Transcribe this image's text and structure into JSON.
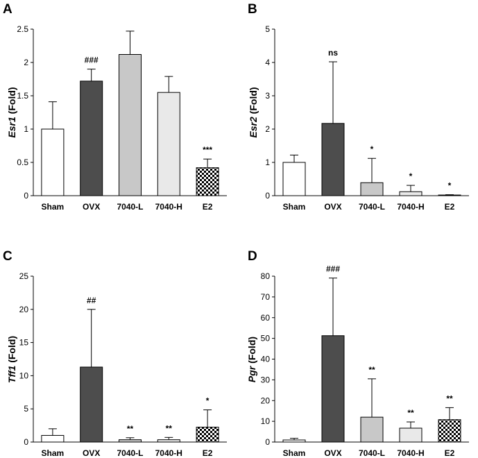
{
  "chart_data": [
    {
      "type": "bar",
      "panel": "A",
      "ylabel_gene": "Esr1",
      "ylabel_suffix": " (Fold)",
      "categories": [
        "Sham",
        "OVX",
        "7040-L",
        "7040-H",
        "E2"
      ],
      "values": [
        1.0,
        1.72,
        2.12,
        1.55,
        0.42
      ],
      "errors": [
        0.41,
        0.18,
        0.35,
        0.24,
        0.13
      ],
      "annotations": [
        "",
        "###",
        "",
        "",
        "***"
      ],
      "ylim": [
        0,
        2.5
      ],
      "yticks": [
        0,
        0.5,
        1,
        1.5,
        2,
        2.5
      ],
      "ytick_labels": [
        "0",
        "0.5",
        "1",
        "1.5",
        "2",
        "2.5"
      ]
    },
    {
      "type": "bar",
      "panel": "B",
      "ylabel_gene": "Esr2",
      "ylabel_suffix": " (Fold)",
      "categories": [
        "Sham",
        "OVX",
        "7040-L",
        "7040-H",
        "E2"
      ],
      "values": [
        1.0,
        2.17,
        0.39,
        0.12,
        0.02
      ],
      "errors": [
        0.22,
        1.85,
        0.73,
        0.19,
        0.01
      ],
      "annotations": [
        "",
        "ns",
        "*",
        "*",
        "*"
      ],
      "ylim": [
        0,
        5
      ],
      "yticks": [
        0,
        1,
        2,
        3,
        4,
        5
      ],
      "ytick_labels": [
        "0",
        "1",
        "2",
        "3",
        "4",
        "5"
      ]
    },
    {
      "type": "bar",
      "panel": "C",
      "ylabel_gene": "Tff1",
      "ylabel_suffix": " (Fold)",
      "categories": [
        "Sham",
        "OVX",
        "7040-L",
        "7040-H",
        "E2"
      ],
      "values": [
        1.0,
        11.3,
        0.35,
        0.35,
        2.25
      ],
      "errors": [
        1.0,
        8.7,
        0.3,
        0.35,
        2.6
      ],
      "annotations": [
        "",
        "##",
        "**",
        "**",
        "*"
      ],
      "ylim": [
        0,
        25
      ],
      "yticks": [
        0,
        5,
        10,
        15,
        20,
        25
      ],
      "ytick_labels": [
        "0",
        "5",
        "10",
        "15",
        "20",
        "25"
      ]
    },
    {
      "type": "bar",
      "panel": "D",
      "ylabel_gene": "Pgr",
      "ylabel_suffix": " (Fold)",
      "categories": [
        "Sham",
        "OVX",
        "7040-L",
        "7040-H",
        "E2"
      ],
      "values": [
        1.0,
        51.3,
        12.0,
        6.7,
        10.8
      ],
      "errors": [
        0.8,
        27.8,
        18.5,
        3.0,
        5.8
      ],
      "annotations": [
        "",
        "###",
        "**",
        "**",
        "**"
      ],
      "ylim": [
        0,
        80
      ],
      "yticks": [
        0,
        10,
        20,
        30,
        40,
        50,
        60,
        70,
        80
      ],
      "ytick_labels": [
        "0",
        "10",
        "20",
        "30",
        "40",
        "50",
        "60",
        "70",
        "80"
      ]
    }
  ],
  "bar_fills": [
    "#ffffff",
    "#4d4d4d",
    "#c8c8c8",
    "#e9e9e9",
    "checker"
  ],
  "colors": {
    "axis": "#000000",
    "background": "#ffffff"
  }
}
